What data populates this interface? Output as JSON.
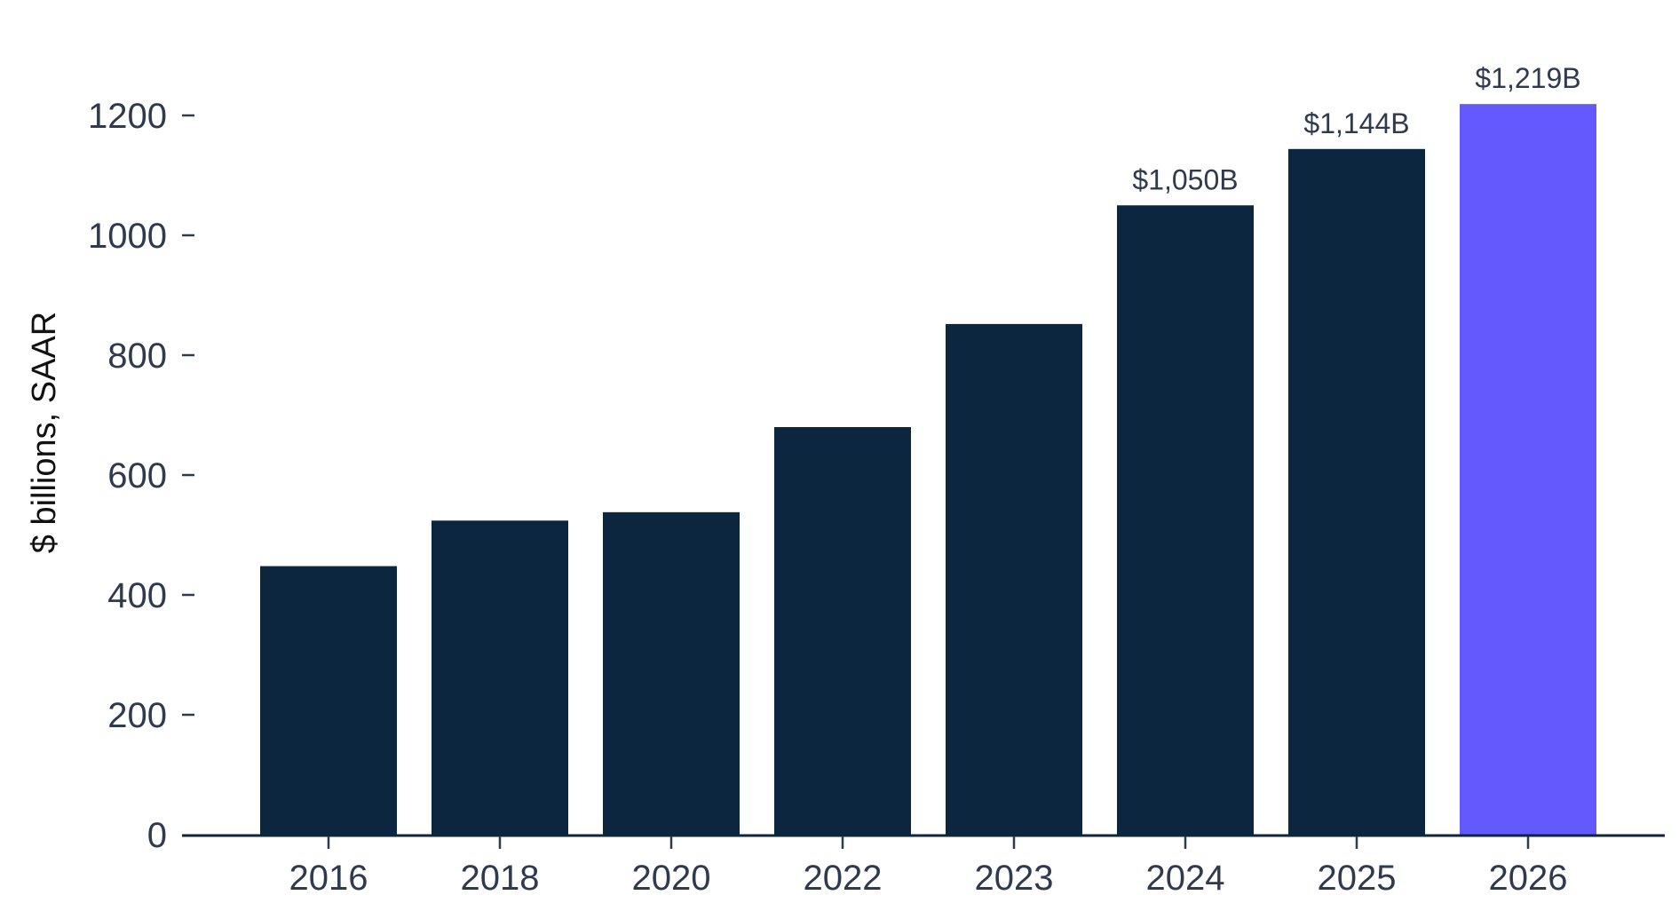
{
  "chart_data": {
    "type": "bar",
    "title": "",
    "xlabel": "",
    "ylabel": "$ billions, SAAR",
    "categories": [
      "2016",
      "2018",
      "2020",
      "2022",
      "2023",
      "2024",
      "2025",
      "2026"
    ],
    "values": [
      448,
      524,
      538,
      680,
      852,
      1050,
      1144,
      1219
    ],
    "data_labels": [
      "",
      "",
      "",
      "",
      "",
      "$1,050B",
      "$1,144B",
      "$1,219B"
    ],
    "ylim": [
      0,
      1300
    ],
    "yticks": [
      0,
      200,
      400,
      600,
      800,
      1000,
      1200
    ],
    "grid": false,
    "legend": "none",
    "colors": {
      "bar": "#0c2640",
      "highlight_bar": "#6459fd",
      "axis": "#0c2640",
      "tick_text": "#2e3a4e"
    },
    "highlight_index": 7
  }
}
